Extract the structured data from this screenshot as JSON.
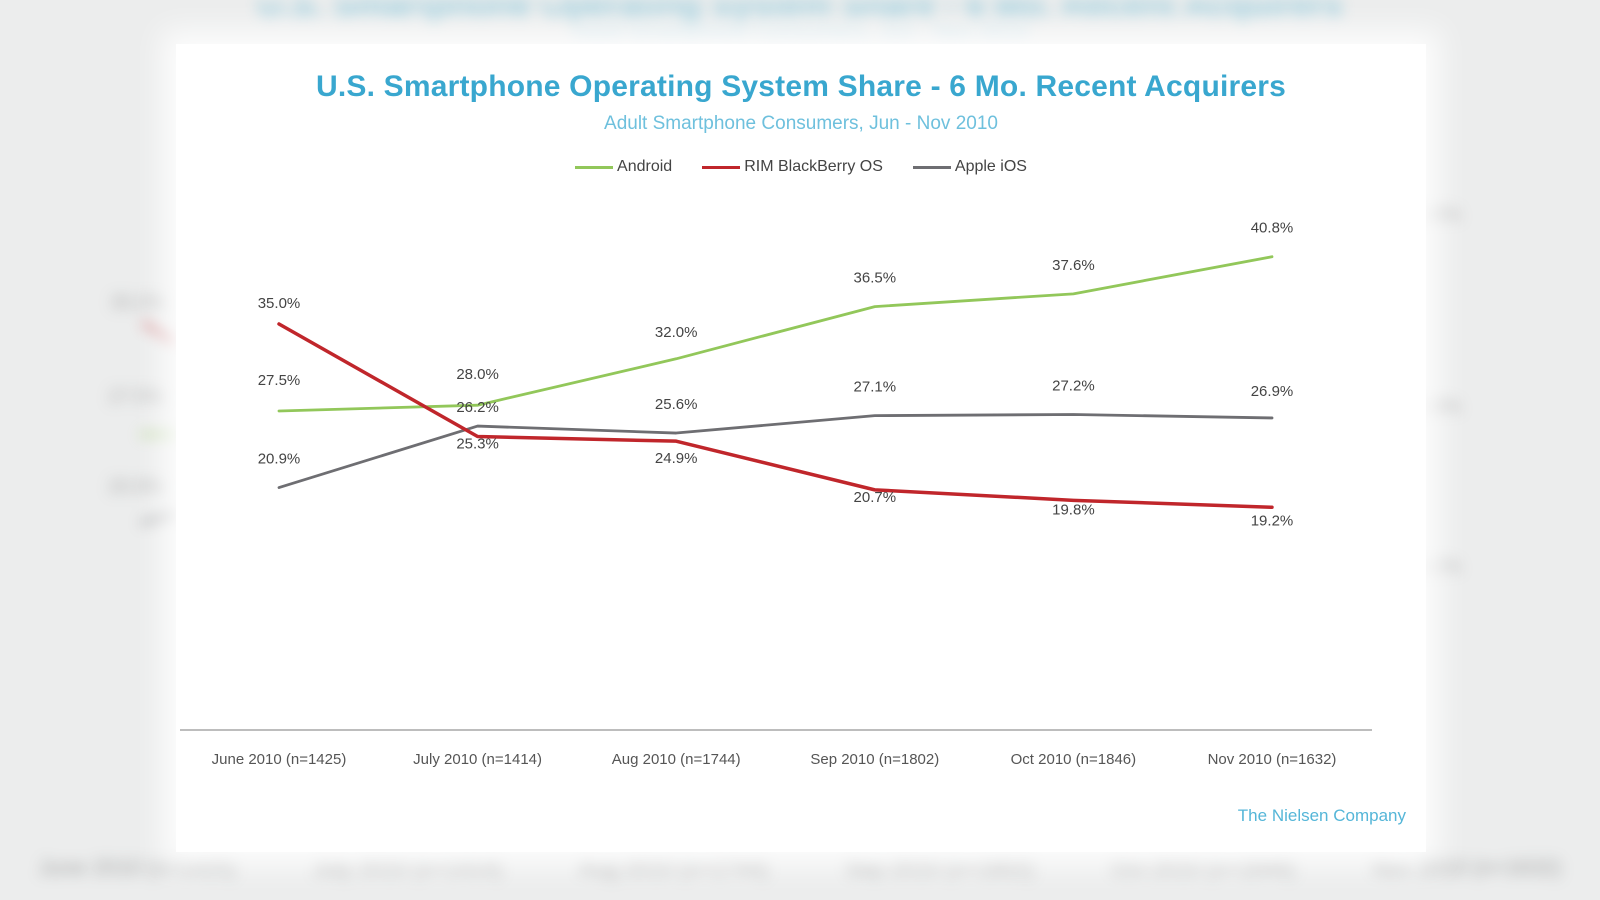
{
  "chart_data": {
    "type": "line",
    "title": "U.S. Smartphone Operating System Share - 6 Mo. Recent Acquirers",
    "subtitle": "Adult Smartphone Consumers, Jun - Nov 2010",
    "categories": [
      "June 2010 (n=1425)",
      "July 2010 (n=1414)",
      "Aug 2010 (n=1744)",
      "Sep 2010 (n=1802)",
      "Oct 2010 (n=1846)",
      "Nov 2010 (n=1632)"
    ],
    "series": [
      {
        "name": "Android",
        "color": "#92c75a",
        "values": [
          27.5,
          28.0,
          32.0,
          36.5,
          37.6,
          40.8
        ],
        "labels": [
          "27.5%",
          "28.0%",
          "32.0%",
          "36.5%",
          "37.6%",
          "40.8%"
        ]
      },
      {
        "name": "RIM BlackBerry OS",
        "color": "#c0262b",
        "values": [
          35.0,
          25.3,
          24.9,
          20.7,
          19.8,
          19.2
        ],
        "labels": [
          "35.0%",
          "25.3%",
          "24.9%",
          "20.7%",
          "19.8%",
          "19.2%"
        ]
      },
      {
        "name": "Apple iOS",
        "color": "#6e6e72",
        "values": [
          20.9,
          26.2,
          25.6,
          27.1,
          27.2,
          26.9
        ],
        "labels": [
          "20.9%",
          "26.2%",
          "25.6%",
          "27.1%",
          "27.2%",
          "26.9%"
        ]
      }
    ],
    "ylim": [
      0,
      50
    ],
    "grid": false,
    "legend_position": "top-center",
    "source": "The Nielsen Company"
  }
}
